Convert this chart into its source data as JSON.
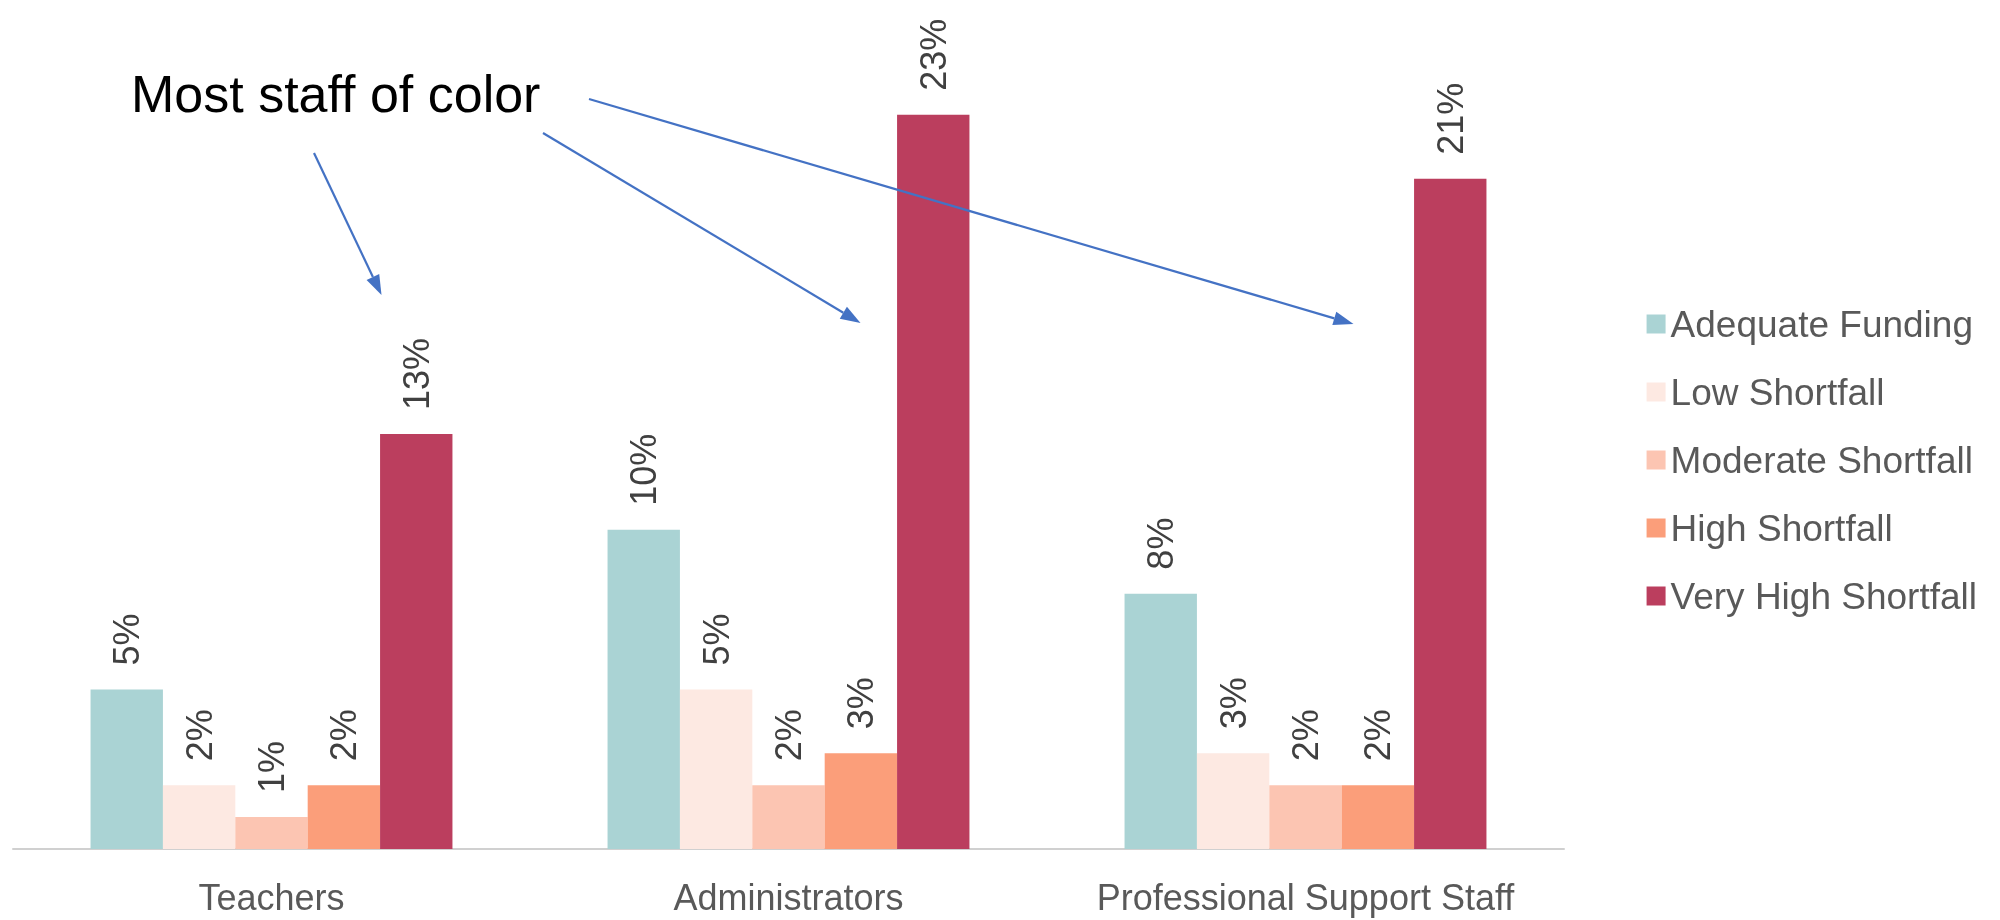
{
  "chart_data": {
    "type": "bar",
    "categories": [
      "Teachers",
      "Administrators",
      "Professional Support Staff"
    ],
    "series": [
      {
        "name": "Adequate Funding",
        "color": "#aad3d4",
        "values": [
          5,
          10,
          8
        ],
        "value_labels": [
          "5%",
          "10%",
          "8%"
        ]
      },
      {
        "name": "Low Shortfall",
        "color": "#fde9e2",
        "values": [
          2,
          5,
          3
        ],
        "value_labels": [
          "2%",
          "5%",
          "3%"
        ]
      },
      {
        "name": "Moderate Shortfall",
        "color": "#fcc5b2",
        "values": [
          1,
          2,
          2
        ],
        "value_labels": [
          "1%",
          "2%",
          "2%"
        ]
      },
      {
        "name": "High Shortfall",
        "color": "#fb9e7a",
        "values": [
          2,
          3,
          2
        ],
        "value_labels": [
          "2%",
          "3%",
          "2%"
        ]
      },
      {
        "name": "Very High Shortfall",
        "color": "#bb3e5e",
        "values": [
          13,
          23,
          21
        ],
        "value_labels": [
          "13%",
          "23%",
          "21%"
        ]
      }
    ],
    "legend": "right",
    "tick_labels": "x",
    "grid": false,
    "annotations": [
      "Most staff of color"
    ]
  }
}
